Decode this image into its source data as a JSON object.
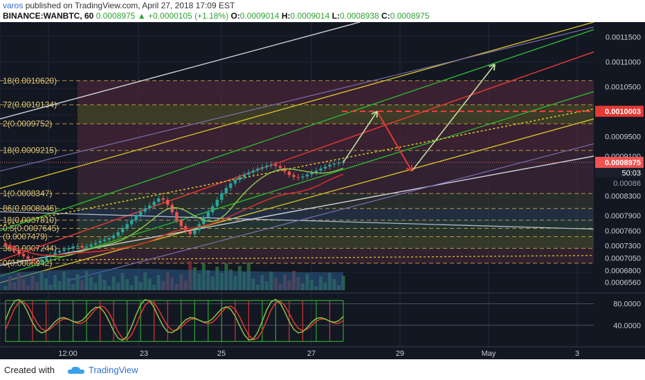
{
  "header": {
    "author": "varos",
    "published_text": "published on TradingView.com, April 27, 2018 17:09 EST",
    "symbol": "BINANCE:WANBTC, 60",
    "last": "0.0008975",
    "change": "+0.0000105 (+1.18%)",
    "o_label": "O:",
    "o_value": "0.0009014",
    "h_label": "H:",
    "h_value": "0.0009014",
    "l_label": "L:",
    "l_value": "0.0008938",
    "c_label": "C:",
    "c_value": "0.0008975"
  },
  "footer": {
    "created_with": "Created with",
    "brand": "TradingView"
  },
  "colors": {
    "background": "#131722",
    "up": "#26a69a",
    "down": "#ef5350",
    "red": "#e53935",
    "green": "#2fb52f",
    "yellow": "#d4c02a",
    "white": "#cfd3dc",
    "purple": "#7b6fb0"
  },
  "chart_data": {
    "type": "candlestick",
    "title": "",
    "ylim": [
      0.00064,
      0.00118
    ],
    "x_ticks": [
      "12:00",
      "23",
      "25",
      "27",
      "29",
      "May",
      "3"
    ],
    "price_ticks": [
      "0.0011500",
      "0.0011000",
      "0.0010500",
      "0.0009500",
      "0.0009100",
      "0.0008300",
      "0.0007900",
      "0.0007600",
      "0.0007300",
      "0.0007050",
      "0.0006800",
      "0.0006560"
    ],
    "price_tag": "0.0008975",
    "countdown": "50:03",
    "target_tag": "0.0010003",
    "partial_tag": "0.00086",
    "fib_levels": [
      {
        "label": "18(0.0010620)",
        "price": 0.001062
      },
      {
        "label": "72(0.0010134)",
        "price": 0.0010134
      },
      {
        "label": "2(0.0009752)",
        "price": 0.0009752
      },
      {
        "label": "18(0.0009215)",
        "price": 0.0009215
      },
      {
        "label": "1(0.0008347)",
        "price": 0.0008347
      },
      {
        "label": "86(0.0008046)",
        "price": 0.0008046
      },
      {
        "label": "18(0.0007810)",
        "price": 0.000781
      },
      {
        "label": "0.5(0.0007645)",
        "price": 0.0007645
      },
      {
        "label": "(0.0007479)",
        "price": 0.0007479
      },
      {
        "label": "36(0.0007244)",
        "price": 0.0007244
      },
      {
        "label": "0(0.0006942)",
        "price": 0.0006942
      }
    ],
    "closes": [
      0.000731,
      0.000725,
      0.00072,
      0.000713,
      0.000708,
      0.000703,
      0.000699,
      0.000697,
      0.000702,
      0.000707,
      0.000711,
      0.000716,
      0.000719,
      0.000722,
      0.000724,
      0.000728,
      0.000729,
      0.000726,
      0.000728,
      0.000732,
      0.000735,
      0.000739,
      0.000742,
      0.000745,
      0.00075,
      0.000757,
      0.000765,
      0.000773,
      0.000781,
      0.00079,
      0.000798,
      0.000805,
      0.000811,
      0.000818,
      0.000825,
      0.000822,
      0.000812,
      0.000797,
      0.000781,
      0.000769,
      0.000759,
      0.000753,
      0.000761,
      0.000773,
      0.000786,
      0.000797,
      0.000809,
      0.000822,
      0.000835,
      0.000846,
      0.000855,
      0.000862,
      0.000868,
      0.000873,
      0.000877,
      0.000881,
      0.000885,
      0.000888,
      0.000891,
      0.000893,
      0.00089,
      0.000886,
      0.000879,
      0.000872,
      0.000868,
      0.000867,
      0.000869,
      0.000873,
      0.000877,
      0.000881,
      0.000885,
      0.000889,
      0.000893,
      0.000895,
      0.000897,
      0.0008975
    ],
    "oscillator": {
      "ticks": [
        "80.0000",
        "40.0000"
      ],
      "levels": [
        80,
        40
      ],
      "ylim": [
        0,
        100
      ]
    },
    "projection": {
      "prices": [
        0.0008975,
        0.0010003,
        0.00088,
        0.001095
      ]
    }
  }
}
